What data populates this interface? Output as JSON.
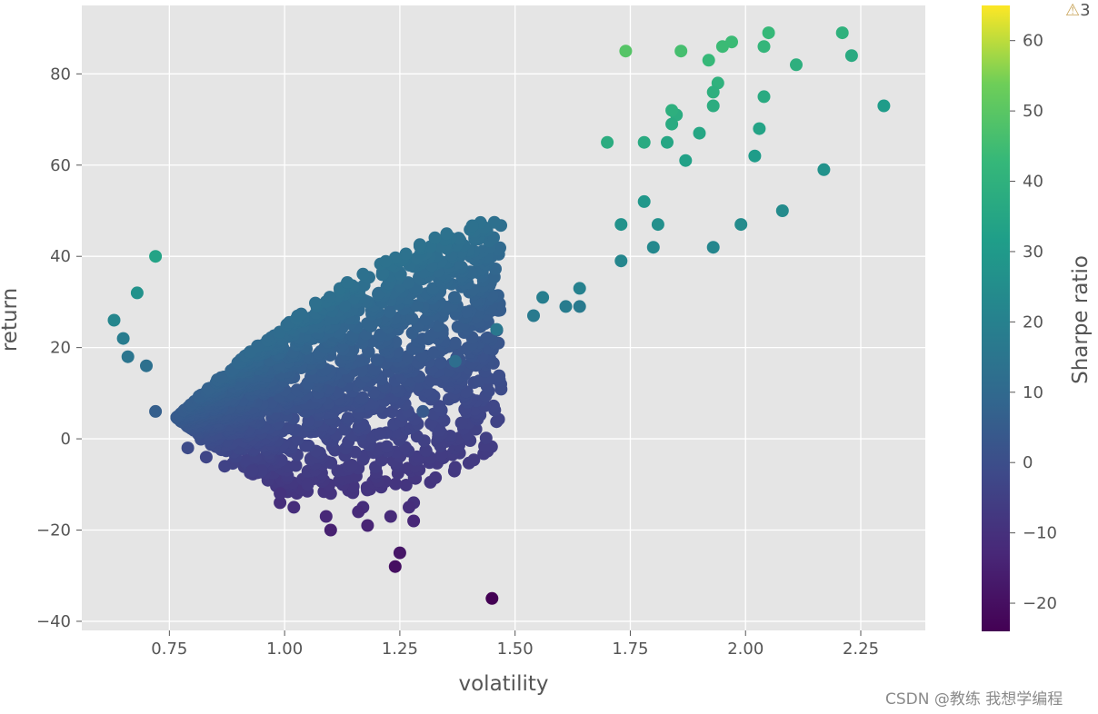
{
  "chart_data": {
    "type": "scatter",
    "title": "",
    "xlabel": "volatility",
    "ylabel": "return",
    "xlim": [
      0.56,
      2.39
    ],
    "ylim": [
      -42,
      95
    ],
    "xticks": [
      0.75,
      1.0,
      1.25,
      1.5,
      1.75,
      2.0,
      2.25
    ],
    "xtick_labels": [
      "0.75",
      "1.00",
      "1.25",
      "1.50",
      "1.75",
      "2.00",
      "2.25"
    ],
    "yticks": [
      -40,
      -20,
      0,
      20,
      40,
      60,
      80
    ],
    "ytick_labels": [
      "−40",
      "−20",
      "0",
      "20",
      "40",
      "60",
      "80"
    ],
    "grid": true,
    "colormap": "viridis",
    "colorbar": {
      "label": "Sharpe ratio",
      "range": [
        -24,
        65
      ],
      "ticks": [
        -20,
        -10,
        0,
        10,
        20,
        30,
        40,
        50,
        60
      ],
      "tick_labels": [
        "−20",
        "−10",
        "0",
        "10",
        "20",
        "30",
        "40",
        "50",
        "60"
      ]
    },
    "points": [
      [
        2.3,
        73,
        31
      ],
      [
        2.23,
        84,
        37
      ],
      [
        2.21,
        89,
        40
      ],
      [
        2.17,
        59,
        27
      ],
      [
        2.11,
        82,
        39
      ],
      [
        2.08,
        50,
        24
      ],
      [
        2.05,
        89,
        43
      ],
      [
        2.04,
        86,
        42
      ],
      [
        2.04,
        75,
        37
      ],
      [
        2.03,
        68,
        34
      ],
      [
        2.02,
        62,
        31
      ],
      [
        1.99,
        47,
        24
      ],
      [
        1.97,
        87,
        44
      ],
      [
        1.95,
        86,
        44
      ],
      [
        1.94,
        78,
        40
      ],
      [
        1.93,
        76,
        39
      ],
      [
        1.93,
        73,
        38
      ],
      [
        1.93,
        42,
        22
      ],
      [
        1.92,
        83,
        43
      ],
      [
        1.9,
        67,
        35
      ],
      [
        1.87,
        61,
        33
      ],
      [
        1.86,
        85,
        46
      ],
      [
        1.85,
        71,
        38
      ],
      [
        1.84,
        72,
        39
      ],
      [
        1.84,
        69,
        37
      ],
      [
        1.83,
        65,
        35
      ],
      [
        1.81,
        47,
        26
      ],
      [
        1.8,
        42,
        23
      ],
      [
        1.78,
        65,
        37
      ],
      [
        1.78,
        52,
        29
      ],
      [
        1.74,
        85,
        49
      ],
      [
        1.73,
        47,
        27
      ],
      [
        1.73,
        39,
        22
      ],
      [
        1.7,
        65,
        38
      ],
      [
        1.61,
        29,
        18
      ],
      [
        1.64,
        33,
        20
      ],
      [
        1.64,
        29,
        17
      ],
      [
        1.56,
        31,
        19
      ],
      [
        1.54,
        27,
        17
      ],
      [
        1.46,
        24,
        16
      ],
      [
        1.45,
        -35,
        -24
      ],
      [
        1.37,
        17,
        12
      ],
      [
        1.3,
        6,
        4
      ],
      [
        1.28,
        -14,
        -10
      ],
      [
        1.28,
        -18,
        -13
      ],
      [
        1.27,
        -15,
        -11
      ],
      [
        1.25,
        -25,
        -18
      ],
      [
        1.24,
        -28,
        -20
      ],
      [
        1.23,
        -17,
        -12
      ],
      [
        1.18,
        -19,
        -14
      ],
      [
        1.17,
        -15,
        -11
      ],
      [
        1.16,
        -16,
        -12
      ],
      [
        1.1,
        -20,
        -15
      ],
      [
        1.09,
        -17,
        -13
      ],
      [
        1.02,
        -15,
        -11
      ],
      [
        0.99,
        -14,
        -11
      ],
      [
        0.99,
        -12,
        -9
      ],
      [
        1.05,
        -10,
        -7
      ],
      [
        0.95,
        -7,
        -5
      ],
      [
        0.93,
        -7,
        -5
      ],
      [
        0.87,
        -6,
        -4
      ],
      [
        0.83,
        -4,
        -3
      ],
      [
        0.79,
        -2,
        -1
      ],
      [
        0.72,
        6,
        6
      ],
      [
        0.7,
        16,
        13
      ],
      [
        0.66,
        18,
        15
      ],
      [
        0.65,
        22,
        18
      ],
      [
        0.63,
        26,
        22
      ],
      [
        0.68,
        32,
        27
      ],
      [
        0.72,
        40,
        34
      ]
    ]
  },
  "warning_text": "3",
  "watermark": "CSDN @教练 我想学编程"
}
